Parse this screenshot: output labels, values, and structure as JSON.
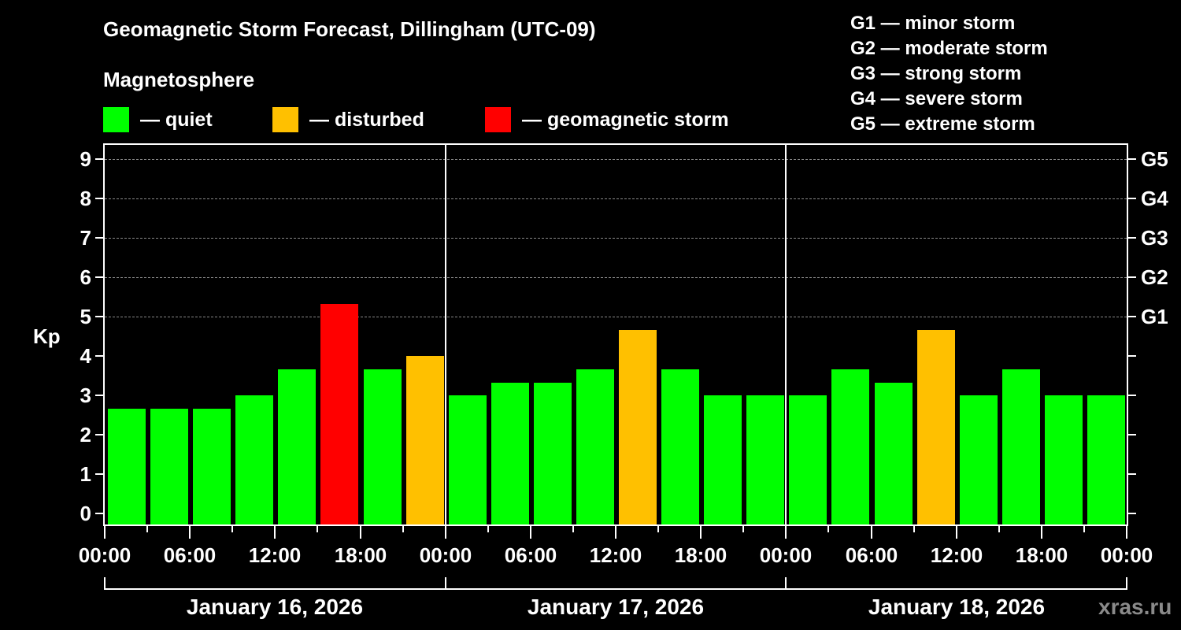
{
  "title": "Geomagnetic Storm Forecast, Dillingham (UTC-09)",
  "subtitle": "Magnetosphere",
  "legend": [
    {
      "label": "— quiet",
      "color": "#00ff00"
    },
    {
      "label": "— disturbed",
      "color": "#ffc000"
    },
    {
      "label": "— geomagnetic storm",
      "color": "#ff0000"
    }
  ],
  "g_legend": [
    "G1 — minor storm",
    "G2 — moderate storm",
    "G3 — strong storm",
    "G4 — severe storm",
    "G5 — extreme storm"
  ],
  "watermark": "xras.ru",
  "chart_data": {
    "type": "bar",
    "title": "Geomagnetic Storm Forecast, Dillingham (UTC-09)",
    "ylabel": "Kp",
    "xlabel": "",
    "ylim": [
      0,
      9
    ],
    "yticks": [
      "0",
      "1",
      "2",
      "3",
      "4",
      "5",
      "6",
      "7",
      "8",
      "9"
    ],
    "right_axis_labels": [
      {
        "kp": 5,
        "label": "G1"
      },
      {
        "kp": 6,
        "label": "G2"
      },
      {
        "kp": 7,
        "label": "G3"
      },
      {
        "kp": 8,
        "label": "G4"
      },
      {
        "kp": 9,
        "label": "G5"
      }
    ],
    "grid": "dashed horizontal at Kp 5-9",
    "xtick_labels": [
      "00:00",
      "06:00",
      "12:00",
      "18:00",
      "00:00",
      "06:00",
      "12:00",
      "18:00",
      "00:00",
      "06:00",
      "12:00",
      "18:00",
      "00:00"
    ],
    "days": [
      "January 16, 2026",
      "January 17, 2026",
      "January 18, 2026"
    ],
    "interval_hours": 3,
    "categories": [
      "Jan16 00-03",
      "Jan16 03-06",
      "Jan16 06-09",
      "Jan16 09-12",
      "Jan16 12-15",
      "Jan16 15-18",
      "Jan16 18-21",
      "Jan16 21-24",
      "Jan17 00-03",
      "Jan17 03-06",
      "Jan17 06-09",
      "Jan17 09-12",
      "Jan17 12-15",
      "Jan17 15-18",
      "Jan17 18-21",
      "Jan17 21-24",
      "Jan18 00-03",
      "Jan18 03-06",
      "Jan18 06-09",
      "Jan18 09-12",
      "Jan18 12-15",
      "Jan18 15-18",
      "Jan18 18-21",
      "Jan18 21-24"
    ],
    "values": [
      2.67,
      2.67,
      2.67,
      3.0,
      3.67,
      5.33,
      3.67,
      4.0,
      3.0,
      3.33,
      3.33,
      3.67,
      4.67,
      3.67,
      3.0,
      3.0,
      3.0,
      3.67,
      3.33,
      4.67,
      3.0,
      3.67,
      3.0,
      3.0
    ],
    "status": [
      "quiet",
      "quiet",
      "quiet",
      "quiet",
      "quiet",
      "storm",
      "quiet",
      "disturbed",
      "quiet",
      "quiet",
      "quiet",
      "quiet",
      "disturbed",
      "quiet",
      "quiet",
      "quiet",
      "quiet",
      "quiet",
      "quiet",
      "disturbed",
      "quiet",
      "quiet",
      "quiet",
      "quiet"
    ],
    "colors": {
      "quiet": "#00ff00",
      "disturbed": "#ffc000",
      "storm": "#ff0000"
    }
  }
}
